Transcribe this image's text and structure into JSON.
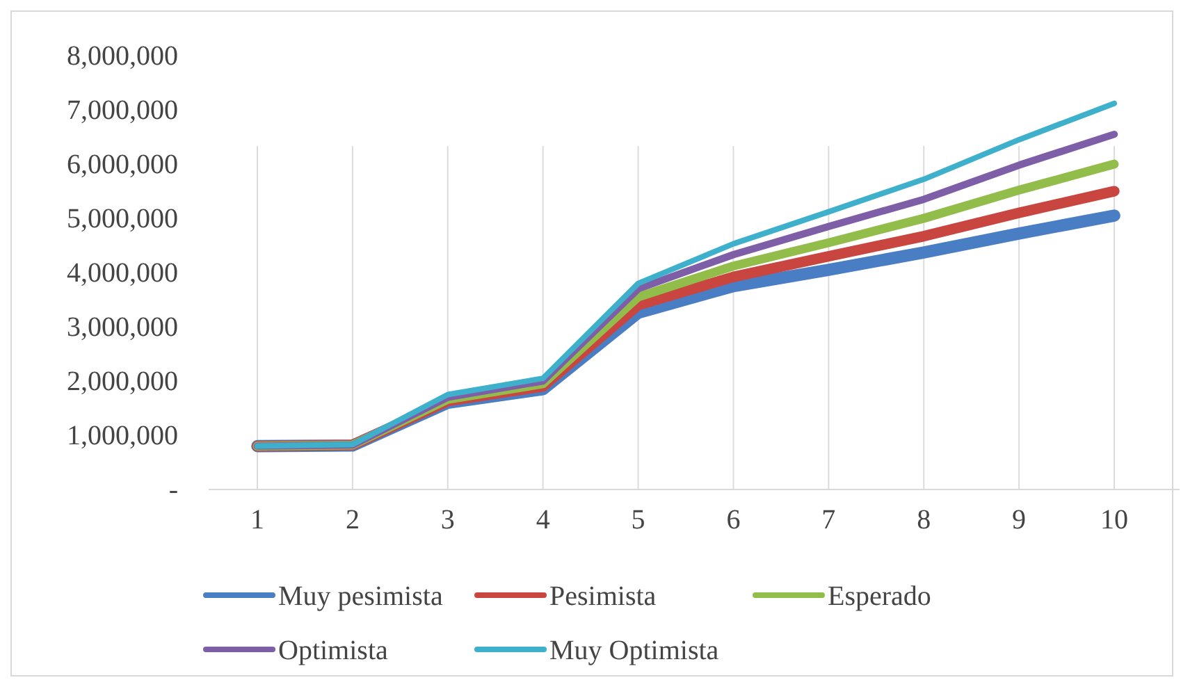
{
  "chart_data": {
    "type": "line",
    "categories": [
      "1",
      "2",
      "3",
      "4",
      "5",
      "6",
      "7",
      "8",
      "9",
      "10"
    ],
    "series": [
      {
        "name": "Muy pesimista",
        "color": "#4a7ec4",
        "values": [
          800000,
          810000,
          1600000,
          1850000,
          3260000,
          3750000,
          4050000,
          4370000,
          4720000,
          5050000
        ]
      },
      {
        "name": "Pesimista",
        "color": "#c8463f",
        "values": [
          800000,
          820000,
          1630000,
          1900000,
          3400000,
          3920000,
          4300000,
          4670000,
          5100000,
          5500000
        ]
      },
      {
        "name": "Esperado",
        "color": "#93bd4b",
        "values": [
          800000,
          820000,
          1660000,
          1950000,
          3550000,
          4120000,
          4550000,
          5000000,
          5520000,
          6000000
        ]
      },
      {
        "name": "Optimista",
        "color": "#7f5ea8",
        "values": [
          800000,
          820000,
          1700000,
          2000000,
          3700000,
          4330000,
          4850000,
          5350000,
          5980000,
          6550000
        ]
      },
      {
        "name": "Muy Optimista",
        "color": "#3fb0cc",
        "values": [
          800000,
          830000,
          1750000,
          2050000,
          3800000,
          4530000,
          5120000,
          5720000,
          6450000,
          7120000
        ]
      }
    ],
    "ylim": [
      0,
      8000000
    ],
    "yticks": [
      {
        "value": 0,
        "label": "-"
      },
      {
        "value": 1000000,
        "label": "1,000,000"
      },
      {
        "value": 2000000,
        "label": "2,000,000"
      },
      {
        "value": 3000000,
        "label": "3,000,000"
      },
      {
        "value": 4000000,
        "label": "4,000,000"
      },
      {
        "value": 5000000,
        "label": "5,000,000"
      },
      {
        "value": 6000000,
        "label": "6,000,000"
      },
      {
        "value": 7000000,
        "label": "7,000,000"
      },
      {
        "value": 8000000,
        "label": "8,000,000"
      }
    ],
    "grid": "x",
    "legend": "bottom",
    "marker": "none",
    "line_style": "solid"
  }
}
